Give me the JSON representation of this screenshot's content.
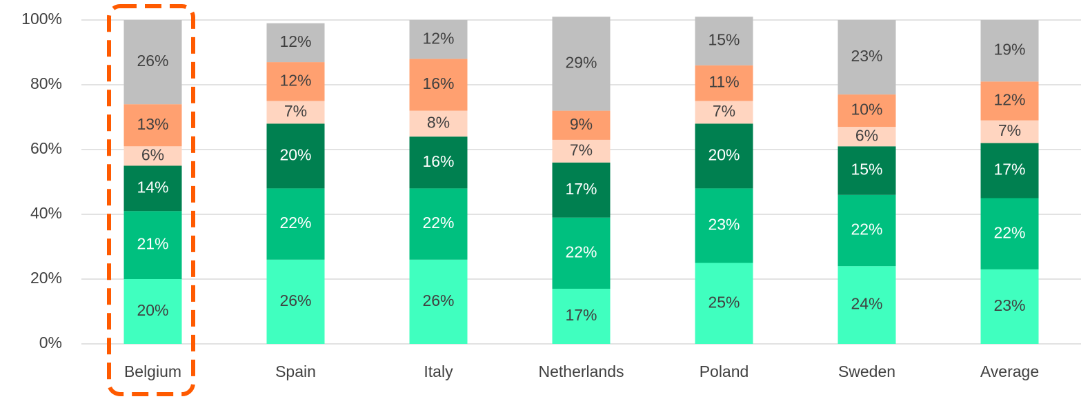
{
  "chart_data": {
    "type": "stacked_bar",
    "categories": [
      "Belgium",
      "Spain",
      "Italy",
      "Netherlands",
      "Poland",
      "Sweden",
      "Average"
    ],
    "series": [
      {
        "color": "#40ffbf",
        "values": [
          20,
          26,
          26,
          17,
          25,
          24,
          23
        ],
        "value_labels": [
          "20%",
          "26%",
          "26%",
          "17%",
          "25%",
          "24%",
          "23%"
        ]
      },
      {
        "color": "#00c07f",
        "values": [
          21,
          22,
          22,
          22,
          23,
          22,
          22
        ],
        "value_labels": [
          "21%",
          "22%",
          "22%",
          "22%",
          "23%",
          "22%",
          "22%"
        ]
      },
      {
        "color": "#008050",
        "values": [
          14,
          20,
          16,
          17,
          20,
          15,
          17
        ],
        "value_labels": [
          "14%",
          "20%",
          "16%",
          "17%",
          "20%",
          "15%",
          "17%"
        ]
      },
      {
        "color": "#ffd5c0",
        "values": [
          6,
          7,
          8,
          7,
          7,
          6,
          7
        ],
        "value_labels": [
          "6%",
          "7%",
          "8%",
          "7%",
          "7%",
          "6%",
          "7%"
        ]
      },
      {
        "color": "#ffa070",
        "values": [
          13,
          12,
          16,
          9,
          11,
          10,
          12
        ],
        "value_labels": [
          "13%",
          "12%",
          "16%",
          "9%",
          "11%",
          "10%",
          "12%"
        ]
      },
      {
        "color": "#bfbfbf",
        "values": [
          26,
          12,
          12,
          29,
          15,
          23,
          19
        ],
        "value_labels": [
          "26%",
          "12%",
          "12%",
          "29%",
          "15%",
          "23%",
          "19%"
        ]
      }
    ],
    "ylim": [
      0,
      100
    ],
    "yticks": [
      {
        "value": 0,
        "label": "0%"
      },
      {
        "value": 20,
        "label": "20%"
      },
      {
        "value": 40,
        "label": "40%"
      },
      {
        "value": 60,
        "label": "60%"
      },
      {
        "value": 80,
        "label": "80%"
      },
      {
        "value": 100,
        "label": "100%"
      }
    ],
    "grid": true
  }
}
